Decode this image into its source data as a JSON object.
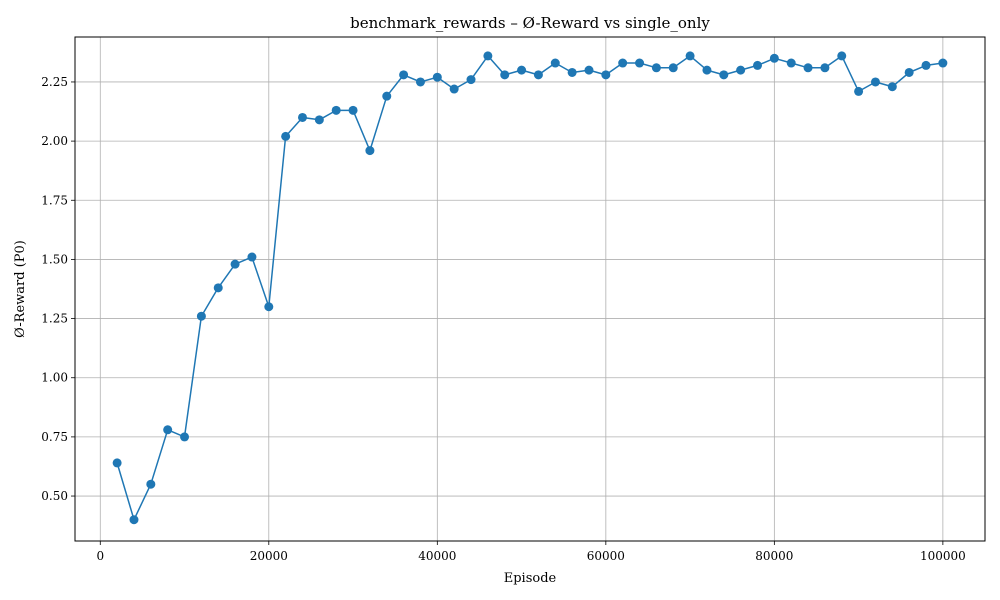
{
  "chart_data": {
    "type": "line",
    "title": "benchmark_rewards – Ø-Reward vs single_only",
    "xlabel": "Episode",
    "ylabel": "Ø-Reward (P0)",
    "xlim": [
      -3000,
      105000
    ],
    "ylim": [
      0.31,
      2.44
    ],
    "xticks": [
      0,
      20000,
      40000,
      60000,
      80000,
      100000
    ],
    "yticks": [
      0.5,
      0.75,
      1.0,
      1.25,
      1.5,
      1.75,
      2.0,
      2.25
    ],
    "xtick_labels": [
      "0",
      "20000",
      "40000",
      "60000",
      "80000",
      "100000"
    ],
    "ytick_labels": [
      "0.50",
      "0.75",
      "1.00",
      "1.25",
      "1.50",
      "1.75",
      "2.00",
      "2.25"
    ],
    "grid": true,
    "line_color": "#1f77b4",
    "series": [
      {
        "x": [
          2000,
          4000,
          6000,
          8000,
          10000,
          12000,
          14000,
          16000,
          18000,
          20000,
          22000,
          24000,
          26000,
          28000,
          30000,
          32000,
          34000,
          36000,
          38000,
          40000,
          42000,
          44000,
          46000,
          48000,
          50000,
          52000,
          54000,
          56000,
          58000,
          60000,
          62000,
          64000,
          66000,
          68000,
          70000,
          72000,
          74000,
          76000,
          78000,
          80000,
          82000,
          84000,
          86000,
          88000,
          90000,
          92000,
          94000,
          96000,
          98000,
          100000
        ],
        "y": [
          0.64,
          0.4,
          0.55,
          0.78,
          0.75,
          1.26,
          1.38,
          1.48,
          1.51,
          1.3,
          2.02,
          2.1,
          2.09,
          2.13,
          2.13,
          1.96,
          2.19,
          2.28,
          2.25,
          2.27,
          2.22,
          2.26,
          2.36,
          2.28,
          2.3,
          2.28,
          2.33,
          2.29,
          2.3,
          2.28,
          2.33,
          2.33,
          2.31,
          2.31,
          2.36,
          2.3,
          2.28,
          2.3,
          2.32,
          2.35,
          2.33,
          2.31,
          2.31,
          2.36,
          2.21,
          2.25,
          2.23,
          2.29,
          2.32,
          2.33
        ]
      }
    ]
  }
}
